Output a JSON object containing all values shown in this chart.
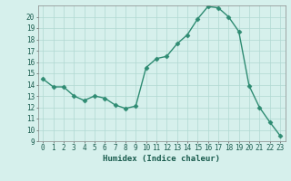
{
  "x": [
    0,
    1,
    2,
    3,
    4,
    5,
    6,
    7,
    8,
    9,
    10,
    11,
    12,
    13,
    14,
    15,
    16,
    17,
    18,
    19,
    20,
    21,
    22,
    23
  ],
  "y": [
    14.5,
    13.8,
    13.8,
    13.0,
    12.6,
    13.0,
    12.8,
    12.2,
    11.9,
    12.1,
    15.5,
    16.3,
    16.5,
    17.6,
    18.4,
    19.8,
    20.9,
    20.8,
    20.0,
    18.7,
    13.9,
    12.0,
    10.7,
    9.5
  ],
  "line_color": "#2e8b72",
  "marker": "D",
  "markersize": 2.5,
  "linewidth": 1.0,
  "xlabel": "Humidex (Indice chaleur)",
  "xlim": [
    -0.5,
    23.5
  ],
  "ylim": [
    9,
    21
  ],
  "yticks": [
    9,
    10,
    11,
    12,
    13,
    14,
    15,
    16,
    17,
    18,
    19,
    20
  ],
  "xticks": [
    0,
    1,
    2,
    3,
    4,
    5,
    6,
    7,
    8,
    9,
    10,
    11,
    12,
    13,
    14,
    15,
    16,
    17,
    18,
    19,
    20,
    21,
    22,
    23
  ],
  "background_color": "#d6f0ec",
  "grid_color": "#b0d8d2",
  "tick_fontsize": 5.5,
  "xlabel_fontsize": 6.5,
  "label_color": "#1a5c4e"
}
